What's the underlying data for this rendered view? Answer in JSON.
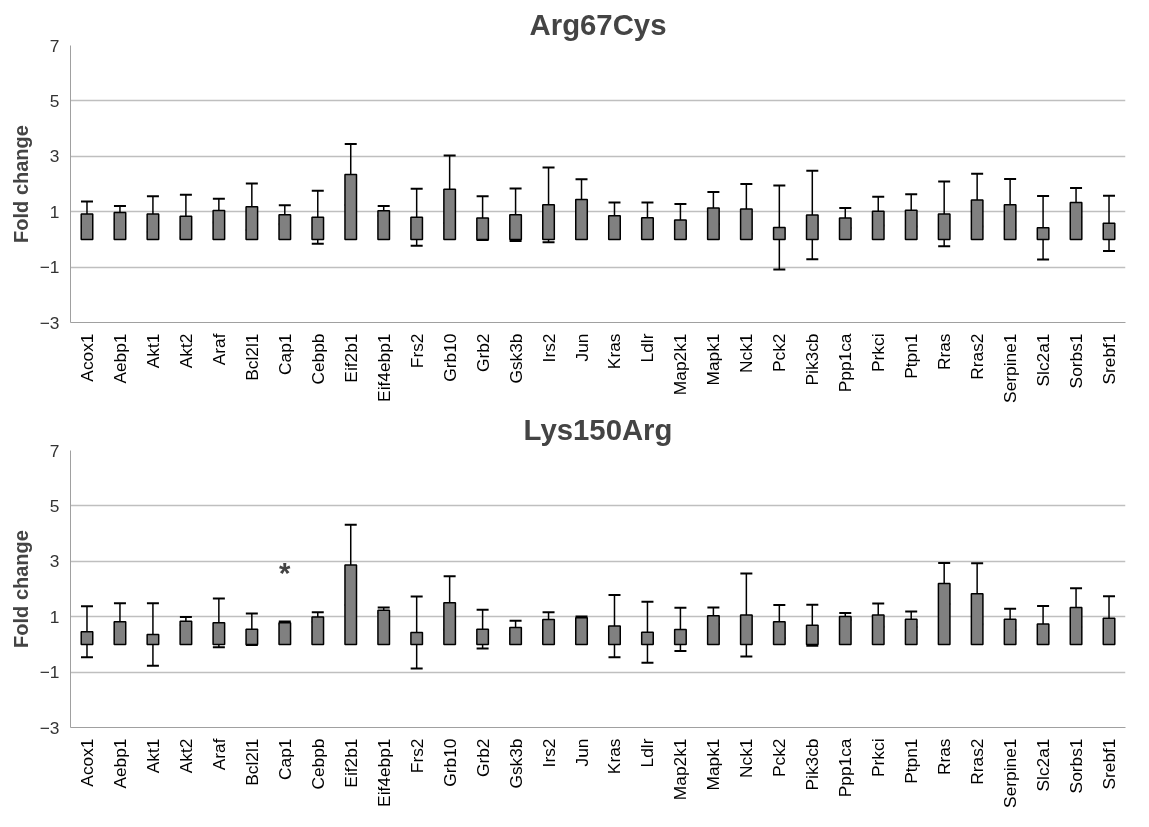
{
  "chart_data": [
    {
      "type": "bar",
      "title": "Arg67Cys",
      "ylabel": "Fold change",
      "categories": [
        "Acox1",
        "Aebp1",
        "Akt1",
        "Akt2",
        "Araf",
        "Bcl2l1",
        "Cap1",
        "Cebpb",
        "Eif2b1",
        "Eif4ebp1",
        "Frs2",
        "Grb10",
        "Grb2",
        "Gsk3b",
        "Irs2",
        "Jun",
        "Kras",
        "Ldlr",
        "Map2k1",
        "Mapk1",
        "Nck1",
        "Pck2",
        "Pik3cb",
        "Ppp1ca",
        "Prkci",
        "Ptpn1",
        "Rras",
        "Rras2",
        "Serpine1",
        "Slc2a1",
        "Sorbs1",
        "Srebf1"
      ],
      "values": [
        0.92,
        0.97,
        0.92,
        0.84,
        1.04,
        1.18,
        0.89,
        0.8,
        2.34,
        1.03,
        0.8,
        1.81,
        0.77,
        0.89,
        1.25,
        1.44,
        0.85,
        0.78,
        0.7,
        1.13,
        1.1,
        0.43,
        0.88,
        0.77,
        1.02,
        1.05,
        0.92,
        1.42,
        1.25,
        0.42,
        1.33,
        0.58
      ],
      "errors": [
        0.45,
        0.24,
        0.64,
        0.77,
        0.43,
        0.84,
        0.34,
        0.96,
        1.1,
        0.18,
        1.03,
        1.22,
        0.79,
        0.95,
        1.35,
        0.73,
        0.48,
        0.55,
        0.58,
        0.58,
        0.9,
        1.52,
        1.6,
        0.36,
        0.52,
        0.58,
        1.17,
        0.95,
        0.93,
        1.15,
        0.53,
        1.0
      ],
      "color": "#808080",
      "ylim": [
        -3,
        7
      ],
      "yticks": [
        -3,
        -1,
        1,
        3,
        5,
        7
      ],
      "grid": "y"
    },
    {
      "type": "bar",
      "title": "Lys150Arg",
      "ylabel": "Fold change",
      "categories": [
        "Acox1",
        "Aebp1",
        "Akt1",
        "Akt2",
        "Araf",
        "Bcl2l1",
        "Cap1",
        "Cebpb",
        "Eif2b1",
        "Eif4ebp1",
        "Frs2",
        "Grb10",
        "Grb2",
        "Gsk3b",
        "Irs2",
        "Jun",
        "Kras",
        "Ldlr",
        "Map2k1",
        "Mapk1",
        "Nck1",
        "Pck2",
        "Pik3cb",
        "Ppp1ca",
        "Prkci",
        "Ptpn1",
        "Rras",
        "Rras2",
        "Serpine1",
        "Slc2a1",
        "Sorbs1",
        "Srebf1"
      ],
      "values": [
        0.46,
        0.82,
        0.36,
        0.84,
        0.78,
        0.55,
        0.78,
        0.99,
        2.87,
        1.23,
        0.43,
        1.5,
        0.55,
        0.61,
        0.9,
        0.96,
        0.66,
        0.44,
        0.54,
        1.03,
        1.06,
        0.82,
        0.69,
        1.01,
        1.06,
        0.91,
        2.2,
        1.83,
        0.91,
        0.74,
        1.33,
        0.94
      ],
      "errors": [
        0.92,
        0.67,
        1.13,
        0.15,
        0.88,
        0.57,
        0.05,
        0.17,
        1.45,
        0.1,
        1.3,
        0.96,
        0.7,
        0.24,
        0.26,
        0.05,
        1.12,
        1.1,
        0.78,
        0.3,
        1.5,
        0.6,
        0.74,
        0.12,
        0.42,
        0.28,
        0.74,
        1.1,
        0.38,
        0.65,
        0.7,
        0.8
      ],
      "color": "#808080",
      "ylim": [
        -3,
        7
      ],
      "yticks": [
        -3,
        -1,
        1,
        3,
        5,
        7
      ],
      "grid": "y",
      "annotations": [
        {
          "text": "*",
          "x": "Cap1",
          "y": 0.78
        }
      ]
    }
  ]
}
